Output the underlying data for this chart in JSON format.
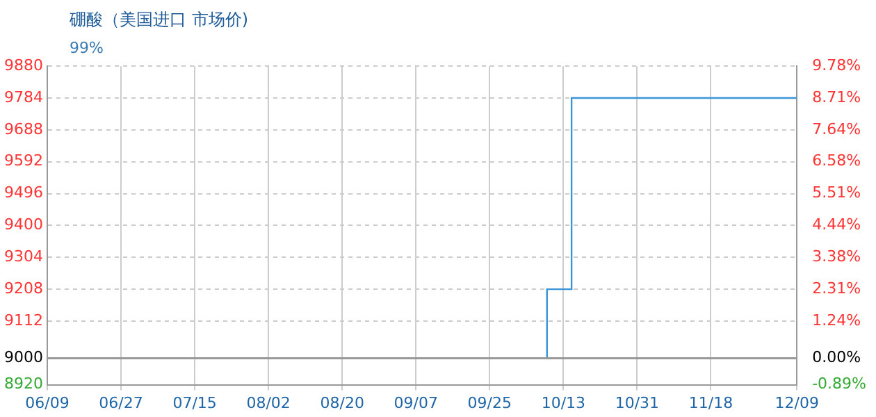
{
  "chart_data": {
    "type": "step",
    "title": "硼酸（美国进口 市场价)",
    "subtitle": "99%",
    "x": [
      "--06-09",
      "--10-09",
      "--10-15",
      "--12-09"
    ],
    "series": [
      {
        "color": "#3a94d8",
        "values": [
          9000,
          9208,
          9784,
          9784
        ]
      }
    ],
    "xlim": [
      "--06-09",
      "--12-09"
    ],
    "xticks": [
      {
        "value": "--06-09",
        "label": "06/09"
      },
      {
        "value": "--06-27",
        "label": "06/27"
      },
      {
        "value": "--07-15",
        "label": "07/15"
      },
      {
        "value": "--08-02",
        "label": "08/02"
      },
      {
        "value": "--08-20",
        "label": "08/20"
      },
      {
        "value": "--09-07",
        "label": "09/07"
      },
      {
        "value": "--09-25",
        "label": "09/25"
      },
      {
        "value": "--10-13",
        "label": "10/13"
      },
      {
        "value": "--10-31",
        "label": "10/31"
      },
      {
        "value": "--11-18",
        "label": "11/18"
      },
      {
        "value": "--12-09",
        "label": "12/09"
      }
    ],
    "ylim": [
      8920,
      9880
    ],
    "yticks": [
      8920,
      9000,
      9112,
      9208,
      9304,
      9400,
      9496,
      9592,
      9688,
      9784,
      9880
    ],
    "y2lim": [
      -0.89,
      9.78
    ],
    "y2ticks": [
      {
        "value": -0.89,
        "label": "-0.89%"
      },
      {
        "value": 0,
        "label": "0.00%"
      },
      {
        "value": 1.24,
        "label": "1.24%"
      },
      {
        "value": 2.31,
        "label": "2.31%"
      },
      {
        "value": 3.38,
        "label": "3.38%"
      },
      {
        "value": 4.44,
        "label": "4.44%"
      },
      {
        "value": 5.51,
        "label": "5.51%"
      },
      {
        "value": 6.58,
        "label": "6.58%"
      },
      {
        "value": 7.64,
        "label": "7.64%"
      },
      {
        "value": 8.71,
        "label": "8.71%"
      },
      {
        "value": 9.78,
        "label": "9.78%"
      }
    ],
    "ref_lines": [
      {
        "axis": "y",
        "value": 9000,
        "color": "#999999"
      }
    ],
    "grid": true,
    "legend": false,
    "marker": "none",
    "line_style": "solid"
  }
}
